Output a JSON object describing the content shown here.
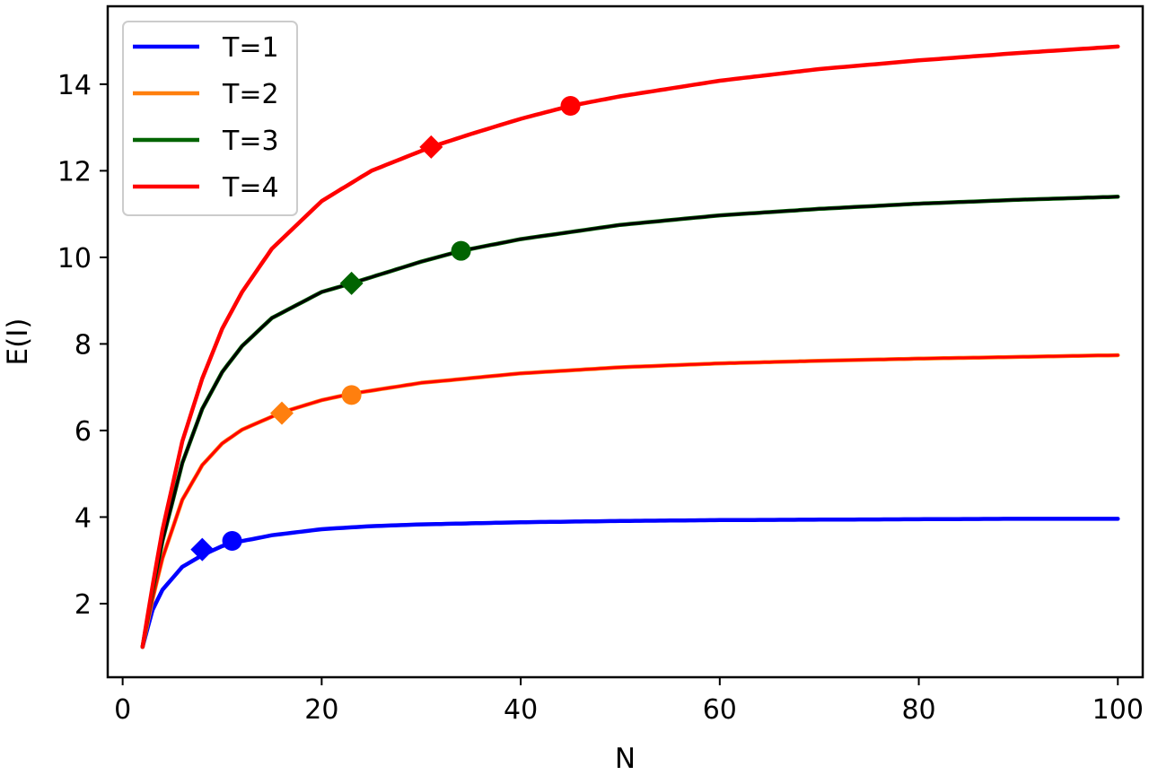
{
  "chart_data": {
    "type": "line",
    "title": "",
    "xlabel": "N",
    "ylabel": "E(I)",
    "xlim": [
      -1.5,
      102.5
    ],
    "ylim": [
      0.3,
      15.8
    ],
    "xticks": [
      0,
      20,
      40,
      60,
      80,
      100
    ],
    "yticks": [
      2,
      4,
      6,
      8,
      10,
      12,
      14
    ],
    "grid": false,
    "legend_position": "top-left",
    "series": [
      {
        "name": "T=1",
        "color": "#0000ff",
        "overlay_color": "#0000ff",
        "asymptote": 4,
        "x": [
          2,
          3,
          4,
          6,
          8,
          10,
          11,
          15,
          20,
          25,
          30,
          40,
          50,
          60,
          70,
          80,
          90,
          100
        ],
        "y": [
          1.0,
          1.85,
          2.32,
          2.85,
          3.12,
          3.33,
          3.4,
          3.58,
          3.72,
          3.79,
          3.83,
          3.88,
          3.91,
          3.93,
          3.94,
          3.95,
          3.96,
          3.96
        ],
        "markers": [
          {
            "shape": "diamond",
            "x": 8,
            "y": 3.25
          },
          {
            "shape": "circle",
            "x": 11,
            "y": 3.45
          }
        ]
      },
      {
        "name": "T=2",
        "color": "#ff7f0e",
        "overlay_color": "#ff0000",
        "asymptote": 8,
        "x": [
          2,
          3,
          4,
          6,
          8,
          10,
          12,
          16,
          20,
          23,
          30,
          40,
          50,
          60,
          70,
          80,
          90,
          100
        ],
        "y": [
          1.0,
          2.1,
          3.05,
          4.4,
          5.2,
          5.7,
          6.02,
          6.42,
          6.7,
          6.85,
          7.1,
          7.32,
          7.46,
          7.55,
          7.61,
          7.66,
          7.7,
          7.74
        ],
        "markers": [
          {
            "shape": "diamond",
            "x": 16,
            "y": 6.4
          },
          {
            "shape": "circle",
            "x": 23,
            "y": 6.82
          }
        ]
      },
      {
        "name": "T=3",
        "color": "#006400",
        "overlay_color": "#000000",
        "asymptote": 12,
        "x": [
          2,
          3,
          4,
          6,
          8,
          10,
          12,
          15,
          20,
          23,
          30,
          34,
          40,
          50,
          60,
          70,
          80,
          90,
          100
        ],
        "y": [
          1.0,
          2.3,
          3.45,
          5.25,
          6.5,
          7.35,
          7.95,
          8.6,
          9.2,
          9.4,
          9.9,
          10.15,
          10.42,
          10.75,
          10.97,
          11.12,
          11.24,
          11.33,
          11.4
        ],
        "markers": [
          {
            "shape": "diamond",
            "x": 23,
            "y": 9.4
          },
          {
            "shape": "circle",
            "x": 34,
            "y": 10.15
          }
        ]
      },
      {
        "name": "T=4",
        "color": "#ff0000",
        "overlay_color": "#ff0000",
        "asymptote": 16,
        "x": [
          2,
          3,
          4,
          6,
          8,
          10,
          12,
          15,
          20,
          25,
          31,
          35,
          40,
          45,
          50,
          60,
          70,
          80,
          90,
          100
        ],
        "y": [
          1.0,
          2.4,
          3.7,
          5.75,
          7.2,
          8.35,
          9.2,
          10.2,
          11.3,
          12.0,
          12.55,
          12.85,
          13.2,
          13.5,
          13.72,
          14.08,
          14.35,
          14.55,
          14.72,
          14.87
        ],
        "markers": [
          {
            "shape": "diamond",
            "x": 31,
            "y": 12.55
          },
          {
            "shape": "circle",
            "x": 45,
            "y": 13.5
          }
        ]
      }
    ]
  }
}
